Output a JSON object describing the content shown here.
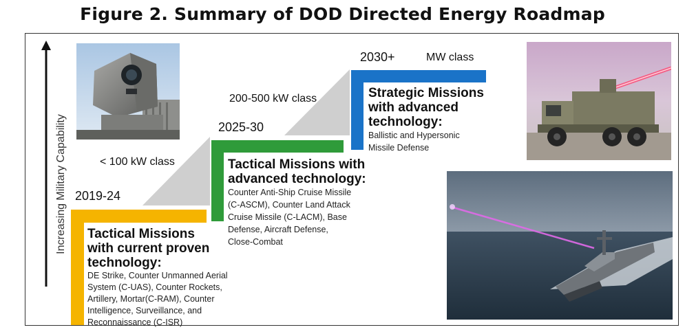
{
  "title": "Figure 2. Summary of DOD Directed Energy Roadmap",
  "y_axis_label": "Increasing Military Capability",
  "colors": {
    "yellow": "#f5b400",
    "green": "#2f9b3a",
    "blue": "#1a73c8",
    "wedge": "#cfcfcf"
  },
  "stages": [
    {
      "period": "2019-24",
      "power_class": "< 100 kW class",
      "heading": "Tactical Missions with current proven technology:",
      "heading_lines": [
        "Tactical Missions",
        "with current proven",
        "technology:"
      ],
      "description_lines": [
        "DE Strike, Counter Unmanned Aerial",
        "System (C-UAS), Counter Rockets,",
        "Artillery, Mortar(C-RAM), Counter",
        "Intelligence, Surveillance, and",
        "Reconnaissance (C-ISR)"
      ]
    },
    {
      "period": "2025-30",
      "power_class": "200-500 kW class",
      "heading": "Tactical Missions with advanced technology:",
      "heading_lines": [
        "Tactical Missions with",
        "advanced technology:"
      ],
      "description_lines": [
        "Counter Anti-Ship Cruise Missile",
        "(C-ASCM), Counter Land Attack",
        "Cruise Missile (C-LACM), Base",
        "Defense,  Aircraft Defense,",
        "Close-Combat"
      ]
    },
    {
      "period": "2030+",
      "power_class": "MW class",
      "heading": "Strategic Missions with advanced technology:",
      "heading_lines": [
        "Strategic Missions",
        "with advanced",
        "technology:"
      ],
      "description_lines": [
        "Ballistic and Hypersonic",
        "Missile Defense"
      ]
    }
  ],
  "images": [
    {
      "icon": "laser-turret-photo"
    },
    {
      "icon": "laser-truck-photo"
    },
    {
      "icon": "laser-warship-photo"
    }
  ]
}
